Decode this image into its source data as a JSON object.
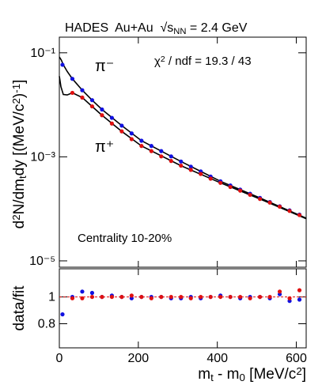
{
  "chart_data": [
    {
      "type": "scatter",
      "title": [
        {
          "text": "HADES  Au+Au  √s"
        },
        {
          "text": "NN",
          "sub": true
        },
        {
          "text": " = 2.4 GeV"
        }
      ],
      "annotations": [
        {
          "parts": [
            {
              "text": "χ"
            },
            {
              "text": "2",
              "sup": true
            },
            {
              "text": " / ndf = 19.3 / 43"
            }
          ]
        },
        {
          "parts": [
            {
              "text": "Centrality 10-20%"
            }
          ]
        }
      ],
      "ylabel": [
        {
          "text": "d"
        },
        {
          "text": "2",
          "sup": true
        },
        {
          "text": "N/dm"
        },
        {
          "text": "t",
          "sub": true
        },
        {
          "text": "dy [(MeV/c"
        },
        {
          "text": "2",
          "sup": true
        },
        {
          "text": ")"
        },
        {
          "text": "-1",
          "sup": true
        },
        {
          "text": "]"
        }
      ],
      "log_y": true,
      "xlim": [
        0,
        625
      ],
      "ylim": [
        7.55e-06,
        0.2
      ],
      "yticks": [
        {
          "value": 0.1,
          "label": "10⁻¹"
        },
        {
          "value": 0.001,
          "label": "10⁻³"
        },
        {
          "value": 1e-05,
          "label": "10⁻⁵"
        }
      ],
      "x": [
        8,
        33,
        58,
        83,
        108,
        133,
        158,
        183,
        208,
        233,
        258,
        283,
        308,
        333,
        358,
        383,
        408,
        433,
        458,
        483,
        508,
        533,
        558,
        583,
        608
      ],
      "series": [
        {
          "name": "π⁻",
          "color": "#1010e0",
          "values": [
            0.0589,
            0.0316,
            0.0191,
            0.0123,
            0.00813,
            0.00562,
            0.00398,
            0.00282,
            0.00204,
            0.00162,
            0.00129,
            0.00102,
            0.000813,
            0.000646,
            0.000525,
            0.000417,
            0.000339,
            0.000282,
            0.000234,
            0.000195,
            0.000162,
            0.000135,
            0.000112,
            9.33e-05,
            7.76e-05
          ]
        },
        {
          "name": "π⁺",
          "color": "#e01010",
          "values": [
            null,
            0.017,
            0.0138,
            0.00933,
            0.00631,
            0.00437,
            0.00309,
            0.00219,
            0.00162,
            0.00129,
            0.00102,
            0.000832,
            0.000676,
            0.000562,
            0.000468,
            0.00038,
            0.000316,
            0.000263,
            0.000224,
            0.000186,
            0.000155,
            0.000132,
            0.00011,
            9.12e-05,
            7.59e-05
          ]
        }
      ],
      "fits": [
        {
          "color": "#000000",
          "x": [
            0,
            5,
            10,
            20,
            33,
            58,
            83,
            108,
            158,
            208,
            308,
            408,
            508,
            625
          ],
          "values": [
            0.0832,
            0.0724,
            0.0589,
            0.0437,
            0.0316,
            0.0191,
            0.0123,
            0.00813,
            0.00398,
            0.00204,
            0.000813,
            0.000339,
            0.000162,
            6.61e-05
          ]
        },
        {
          "color": "#000000",
          "x": [
            0,
            4,
            10,
            20,
            33,
            58,
            83,
            108,
            158,
            208,
            308,
            408,
            508,
            625
          ],
          "values": [
            0.0355,
            0.0224,
            0.0158,
            0.0155,
            0.017,
            0.0138,
            0.00933,
            0.00631,
            0.00309,
            0.00162,
            0.000676,
            0.000316,
            0.000155,
            6.46e-05
          ]
        }
      ]
    },
    {
      "type": "scatter",
      "ylabel": [
        {
          "text": "data/fit"
        }
      ],
      "xlabel": [
        {
          "text": "m"
        },
        {
          "text": "t",
          "sub": true
        },
        {
          "text": " - m"
        },
        {
          "text": "0",
          "sub": true
        },
        {
          "text": " [MeV/c"
        },
        {
          "text": "2",
          "sup": true
        },
        {
          "text": "]"
        }
      ],
      "xlim": [
        0,
        625
      ],
      "ylim": [
        0.62,
        1.21
      ],
      "xticks": [
        0,
        200,
        400,
        600
      ],
      "yticks": [
        0.8,
        1
      ],
      "reference": 1,
      "reference_color": "#e01010",
      "x": [
        8,
        33,
        58,
        83,
        108,
        133,
        158,
        183,
        208,
        233,
        258,
        283,
        308,
        333,
        358,
        383,
        408,
        433,
        458,
        483,
        508,
        533,
        558,
        583,
        608
      ],
      "series": [
        {
          "color": "#1010e0",
          "values": [
            0.87,
            1.0,
            1.04,
            1.03,
            1.0,
            1.01,
            1.0,
            0.99,
            1.0,
            1.0,
            1.0,
            0.99,
            0.99,
            1.0,
            0.99,
            1.0,
            1.01,
            1.0,
            0.99,
            1.0,
            1.0,
            0.99,
            1.02,
            0.97,
            0.98
          ]
        },
        {
          "color": "#e01010",
          "values": [
            null,
            0.99,
            0.99,
            1.0,
            1.0,
            1.0,
            1.0,
            1.01,
            1.0,
            0.99,
            1.0,
            1.0,
            1.0,
            0.99,
            1.0,
            1.0,
            1.0,
            1.0,
            1.0,
            0.99,
            1.0,
            1.0,
            1.04,
            0.99,
            1.05
          ]
        }
      ]
    }
  ]
}
